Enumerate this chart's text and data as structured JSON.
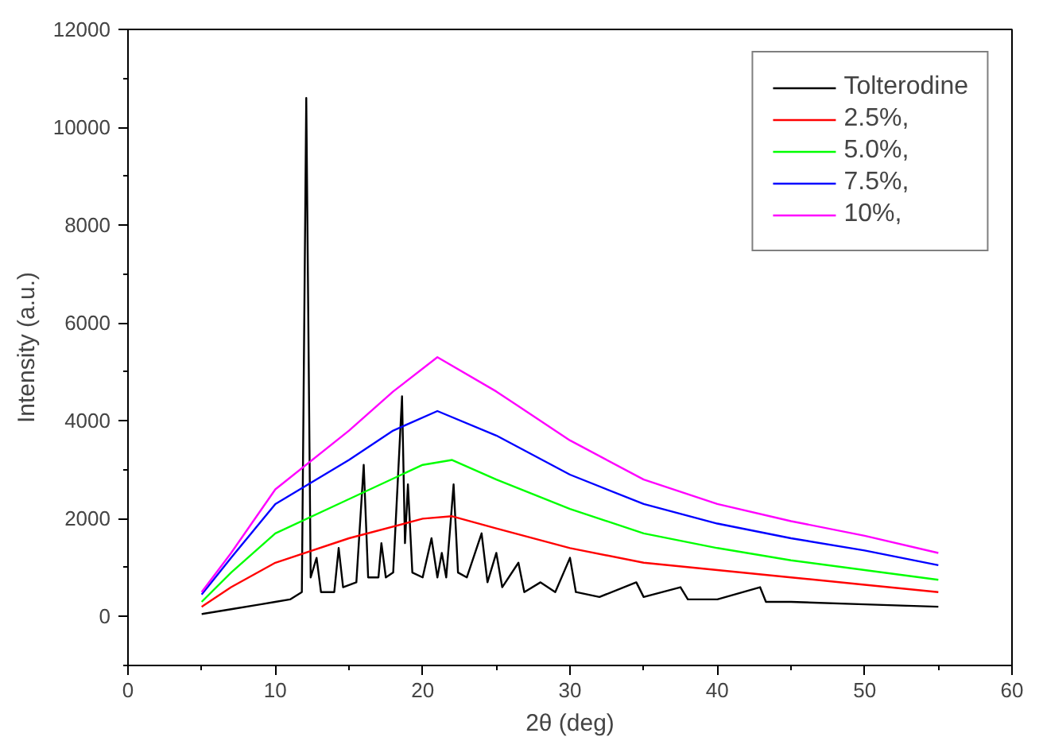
{
  "chart_data": {
    "type": "line",
    "xlabel": "2θ (deg)",
    "ylabel": "Intensity (a.u.)",
    "xlim": [
      0,
      60
    ],
    "ylim": [
      -1000,
      12000
    ],
    "xticks": [
      0,
      10,
      20,
      30,
      40,
      50,
      60
    ],
    "yticks": [
      0,
      2000,
      4000,
      6000,
      8000,
      10000,
      12000
    ],
    "legend": "top right",
    "grid": false,
    "marker": "none",
    "line_style": "solid",
    "series": [
      {
        "name": "Tolterodine",
        "color": "#000000",
        "x": [
          5,
          7,
          9,
          10,
          11,
          11.8,
          12.1,
          12.4,
          12.8,
          13.1,
          14.0,
          14.3,
          14.6,
          15.5,
          16.0,
          16.3,
          17.0,
          17.2,
          17.5,
          18.0,
          18.6,
          18.8,
          19.0,
          19.3,
          20.0,
          20.6,
          21.0,
          21.3,
          21.6,
          22.1,
          22.4,
          23.0,
          24.0,
          24.4,
          25.0,
          25.4,
          26.5,
          26.9,
          28.0,
          29.0,
          30.0,
          30.4,
          32,
          34.5,
          35,
          37.5,
          38,
          40,
          42.9,
          43.3,
          45,
          50,
          55
        ],
        "values": [
          50,
          150,
          250,
          300,
          350,
          500,
          10600,
          800,
          1200,
          500,
          500,
          1400,
          600,
          700,
          3100,
          800,
          800,
          1500,
          800,
          900,
          4500,
          1500,
          2700,
          900,
          800,
          1600,
          800,
          1300,
          800,
          2700,
          900,
          800,
          1700,
          700,
          1300,
          600,
          1100,
          500,
          700,
          500,
          1200,
          500,
          400,
          700,
          400,
          600,
          350,
          350,
          600,
          300,
          300,
          250,
          200
        ]
      },
      {
        "name": "2.5%,",
        "color": "#ff0000",
        "x": [
          5,
          7,
          10,
          15,
          20,
          22,
          25,
          30,
          35,
          40,
          45,
          50,
          55
        ],
        "values": [
          200,
          600,
          1100,
          1600,
          2000,
          2050,
          1800,
          1400,
          1100,
          950,
          800,
          650,
          500
        ]
      },
      {
        "name": "5.0%,",
        "color": "#00ff00",
        "x": [
          5,
          7,
          10,
          15,
          20,
          22,
          25,
          30,
          35,
          40,
          45,
          50,
          55
        ],
        "values": [
          300,
          900,
          1700,
          2400,
          3100,
          3200,
          2800,
          2200,
          1700,
          1400,
          1150,
          950,
          750
        ]
      },
      {
        "name": "7.5%,",
        "color": "#0000ff",
        "x": [
          5,
          7,
          10,
          15,
          18,
          21,
          25,
          30,
          35,
          40,
          45,
          50,
          55
        ],
        "values": [
          450,
          1200,
          2300,
          3200,
          3800,
          4200,
          3700,
          2900,
          2300,
          1900,
          1600,
          1350,
          1050
        ]
      },
      {
        "name": "10%,",
        "color": "#ff00ff",
        "x": [
          5,
          7,
          10,
          15,
          18,
          21,
          25,
          30,
          35,
          40,
          45,
          50,
          55
        ],
        "values": [
          500,
          1300,
          2600,
          3800,
          4600,
          5300,
          4600,
          3600,
          2800,
          2300,
          1950,
          1650,
          1300
        ]
      }
    ]
  }
}
